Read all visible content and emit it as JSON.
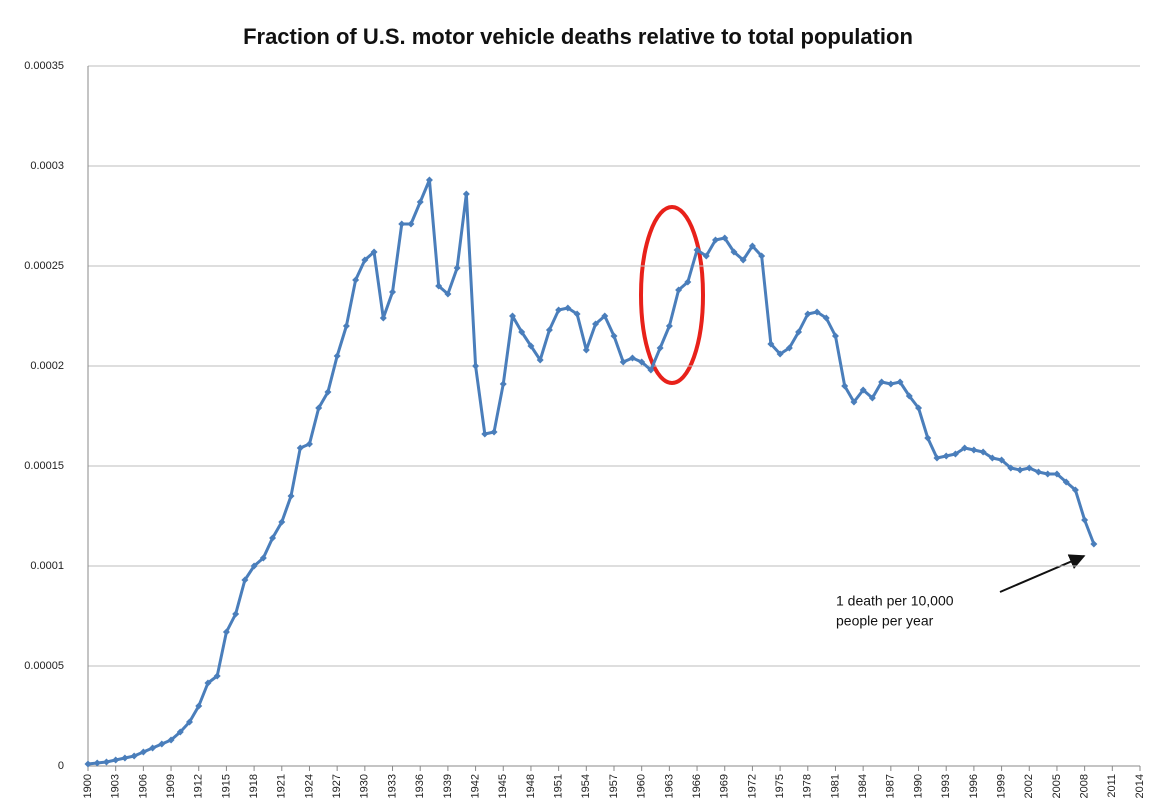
{
  "chart_data": {
    "type": "line",
    "title": "Fraction of U.S. motor vehicle deaths relative to total population",
    "x": [
      1900,
      1901,
      1902,
      1903,
      1904,
      1905,
      1906,
      1907,
      1908,
      1909,
      1910,
      1911,
      1912,
      1913,
      1914,
      1915,
      1916,
      1917,
      1918,
      1919,
      1920,
      1921,
      1922,
      1923,
      1924,
      1925,
      1926,
      1927,
      1928,
      1929,
      1930,
      1931,
      1932,
      1933,
      1934,
      1935,
      1936,
      1937,
      1938,
      1939,
      1940,
      1941,
      1942,
      1943,
      1944,
      1945,
      1946,
      1947,
      1948,
      1949,
      1950,
      1951,
      1952,
      1953,
      1954,
      1955,
      1956,
      1957,
      1958,
      1959,
      1960,
      1961,
      1962,
      1963,
      1964,
      1965,
      1966,
      1967,
      1968,
      1969,
      1970,
      1971,
      1972,
      1973,
      1974,
      1975,
      1976,
      1977,
      1978,
      1979,
      1980,
      1981,
      1982,
      1983,
      1984,
      1985,
      1986,
      1987,
      1988,
      1989,
      1990,
      1991,
      1992,
      1993,
      1994,
      1995,
      1996,
      1997,
      1998,
      1999,
      2000,
      2001,
      2002,
      2003,
      2004,
      2005,
      2006,
      2007,
      2008,
      2009
    ],
    "values": [
      1e-06,
      1.5e-06,
      2e-06,
      3e-06,
      4e-06,
      5e-06,
      7e-06,
      9e-06,
      1.1e-05,
      1.3e-05,
      1.7e-05,
      2.2e-05,
      3e-05,
      4.15e-05,
      4.5e-05,
      6.7e-05,
      7.6e-05,
      9.3e-05,
      0.0001,
      0.000104,
      0.000114,
      0.000122,
      0.000135,
      0.000159,
      0.000161,
      0.000179,
      0.000187,
      0.000205,
      0.00022,
      0.000243,
      0.000253,
      0.000257,
      0.000224,
      0.000237,
      0.000271,
      0.000271,
      0.000282,
      0.000293,
      0.00024,
      0.000236,
      0.000249,
      0.000286,
      0.0002,
      0.000166,
      0.000167,
      0.000191,
      0.000225,
      0.000217,
      0.00021,
      0.000203,
      0.000218,
      0.000228,
      0.000229,
      0.000226,
      0.000208,
      0.000221,
      0.000225,
      0.000215,
      0.000202,
      0.000204,
      0.000202,
      0.000198,
      0.000209,
      0.00022,
      0.000238,
      0.000242,
      0.000258,
      0.000255,
      0.000263,
      0.000264,
      0.000257,
      0.000253,
      0.00026,
      0.000255,
      0.000211,
      0.000206,
      0.000209,
      0.000217,
      0.000226,
      0.000227,
      0.000224,
      0.000215,
      0.00019,
      0.000182,
      0.000188,
      0.000184,
      0.000192,
      0.000191,
      0.000192,
      0.000185,
      0.000179,
      0.000164,
      0.000154,
      0.000155,
      0.000156,
      0.000159,
      0.000158,
      0.000157,
      0.000154,
      0.000153,
      0.000149,
      0.000148,
      0.000149,
      0.000147,
      0.000146,
      0.000146,
      0.000142,
      0.000138,
      0.000123,
      0.000111
    ],
    "color": "#4a7ebb",
    "xlim": [
      1900,
      2014
    ],
    "xticks": [
      1900,
      1903,
      1906,
      1909,
      1912,
      1915,
      1918,
      1921,
      1924,
      1927,
      1930,
      1933,
      1936,
      1939,
      1942,
      1945,
      1948,
      1951,
      1954,
      1957,
      1960,
      1963,
      1966,
      1969,
      1972,
      1975,
      1978,
      1981,
      1984,
      1987,
      1990,
      1993,
      1996,
      1999,
      2002,
      2005,
      2008,
      2011,
      2014
    ],
    "ylim": [
      0,
      0.00035
    ],
    "yticks": [
      0,
      5e-05,
      0.0001,
      0.00015,
      0.0002,
      0.00025,
      0.0003,
      0.00035
    ],
    "grid": true,
    "annotation": [
      "1 death per 10,000",
      "people per year"
    ]
  }
}
